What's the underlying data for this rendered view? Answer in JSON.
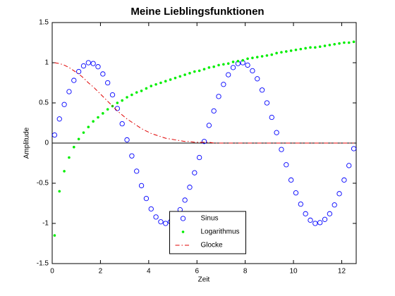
{
  "chart_data": {
    "type": "line",
    "title": "Meine Lieblingsfunktionen",
    "x_label": "Zeit",
    "y_label": "Amplitude",
    "x": [
      0.1,
      0.3,
      0.5,
      0.7,
      0.9,
      1.1,
      1.3,
      1.5,
      1.7,
      1.9,
      2.1,
      2.3,
      2.5,
      2.7,
      2.9,
      3.1,
      3.3,
      3.5,
      3.7,
      3.9,
      4.1,
      4.3,
      4.5,
      4.7,
      4.9,
      5.1,
      5.3,
      5.5,
      5.7,
      5.9,
      6.1,
      6.3,
      6.5,
      6.7,
      6.9,
      7.1,
      7.3,
      7.5,
      7.7,
      7.9,
      8.1,
      8.3,
      8.5,
      8.7,
      8.9,
      9.1,
      9.3,
      9.5,
      9.7,
      9.9,
      10.1,
      10.3,
      10.5,
      10.7,
      10.9,
      11.1,
      11.3,
      11.5,
      11.7,
      11.9,
      12.1,
      12.3,
      12.5
    ],
    "series": [
      {
        "name": "Sinus",
        "color": "#0000ff",
        "marker": "circle",
        "line": "none",
        "values": [
          0.1,
          0.3,
          0.48,
          0.64,
          0.78,
          0.89,
          0.96,
          1.0,
          0.99,
          0.95,
          0.86,
          0.75,
          0.6,
          0.43,
          0.24,
          0.04,
          -0.16,
          -0.35,
          -0.53,
          -0.69,
          -0.82,
          -0.92,
          -0.98,
          -1.0,
          -0.98,
          -0.93,
          -0.83,
          -0.71,
          -0.55,
          -0.37,
          -0.18,
          0.02,
          0.22,
          0.4,
          0.58,
          0.73,
          0.85,
          0.94,
          0.99,
          1.0,
          0.97,
          0.9,
          0.8,
          0.66,
          0.5,
          0.32,
          0.13,
          -0.08,
          -0.27,
          -0.46,
          -0.62,
          -0.76,
          -0.88,
          -0.96,
          -1.0,
          -0.99,
          -0.95,
          -0.88,
          -0.77,
          -0.63,
          -0.46,
          -0.28,
          -0.07
        ]
      },
      {
        "name": "Logarithmus",
        "color": "#00ee00",
        "marker": "point",
        "line": "none",
        "values": [
          -1.15,
          -0.6,
          -0.35,
          -0.18,
          -0.05,
          0.05,
          0.13,
          0.2,
          0.27,
          0.32,
          0.37,
          0.42,
          0.46,
          0.5,
          0.53,
          0.57,
          0.6,
          0.63,
          0.65,
          0.68,
          0.71,
          0.73,
          0.75,
          0.77,
          0.79,
          0.81,
          0.83,
          0.85,
          0.87,
          0.89,
          0.9,
          0.92,
          0.94,
          0.95,
          0.97,
          0.98,
          0.99,
          1.01,
          1.02,
          1.03,
          1.05,
          1.06,
          1.07,
          1.08,
          1.09,
          1.1,
          1.12,
          1.13,
          1.14,
          1.15,
          1.16,
          1.17,
          1.18,
          1.19,
          1.19,
          1.2,
          1.21,
          1.22,
          1.23,
          1.24,
          1.25,
          1.25,
          1.26
        ]
      },
      {
        "name": "Glocke",
        "color": "#e00000",
        "marker": "none",
        "line": "dash-dot",
        "values": [
          1.0,
          0.99,
          0.97,
          0.94,
          0.9,
          0.86,
          0.81,
          0.75,
          0.7,
          0.64,
          0.58,
          0.52,
          0.46,
          0.4,
          0.35,
          0.3,
          0.26,
          0.22,
          0.18,
          0.15,
          0.12,
          0.1,
          0.08,
          0.06,
          0.05,
          0.04,
          0.03,
          0.02,
          0.02,
          0.01,
          0.01,
          0.01,
          0.01,
          0,
          0,
          0,
          0,
          0,
          0,
          0,
          0,
          0,
          0,
          0,
          0,
          0,
          0,
          0,
          0,
          0,
          0,
          0,
          0,
          0,
          0,
          0,
          0,
          0,
          0,
          0,
          0,
          0,
          0
        ]
      }
    ],
    "xlim": [
      0,
      12.6
    ],
    "ylim": [
      -1.5,
      1.5
    ],
    "xticks": [
      0,
      2,
      4,
      6,
      8,
      10,
      12
    ],
    "yticks": [
      -1.5,
      -1,
      -0.5,
      0,
      0.5,
      1,
      1.5
    ],
    "zero_line": true,
    "legend": "bottom-center"
  }
}
